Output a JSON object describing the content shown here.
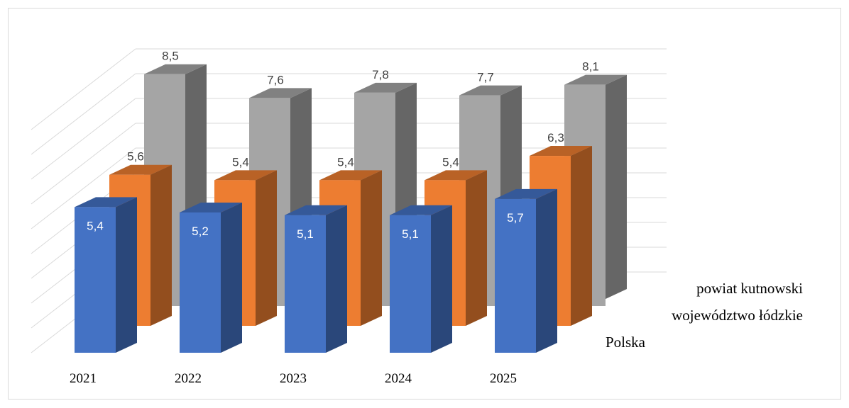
{
  "chart_data": {
    "type": "bar",
    "variant": "3d-column",
    "categories": [
      "2021",
      "2022",
      "2023",
      "2024",
      "2025"
    ],
    "series": [
      {
        "name": "Polska",
        "values": [
          5.4,
          5.2,
          5.1,
          5.1,
          5.7
        ],
        "labels": [
          "5,4",
          "5,2",
          "5,1",
          "5,1",
          "5,7"
        ]
      },
      {
        "name": "województwo łódzkie",
        "values": [
          5.6,
          5.4,
          5.4,
          5.4,
          6.3
        ],
        "labels": [
          "5,6",
          "5,4",
          "5,4",
          "5,4",
          "6,3"
        ]
      },
      {
        "name": "powiat kutnowski",
        "values": [
          8.5,
          7.6,
          7.8,
          7.7,
          8.1
        ],
        "labels": [
          "8,5",
          "7,6",
          "7,8",
          "7,7",
          "8,1"
        ]
      }
    ],
    "ylim": [
      0,
      9
    ],
    "grid": true,
    "colors": {
      "Polska": "#4472C4",
      "województwo łódzkie": "#ED7D31",
      "powiat kutnowski": "#A5A5A5"
    }
  }
}
